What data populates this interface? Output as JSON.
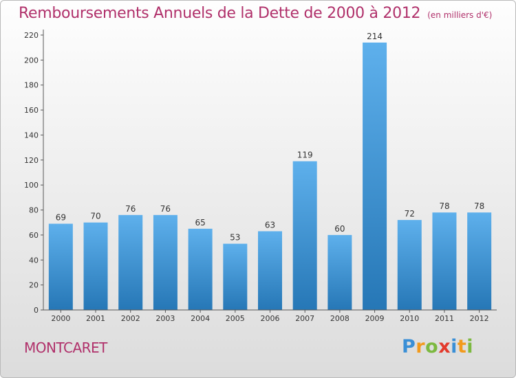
{
  "header": {
    "title": "Remboursements Annuels de la Dette de 2000 à 2012",
    "unit": "(en milliers d'€)"
  },
  "footer": {
    "commune": "MONTCARET",
    "logo_letters": [
      "P",
      "r",
      "o",
      "x",
      "i",
      "t",
      "i"
    ]
  },
  "colors": {
    "title": "#b0306a",
    "bar_top": "#5eb0ec",
    "bar_bottom": "#2677b6",
    "logo": [
      "#3a8fd6",
      "#f29a1c",
      "#7cb940",
      "#e33a2c",
      "#3a8fd6",
      "#f29a1c",
      "#7cb940"
    ]
  },
  "chart_data": {
    "type": "bar",
    "categories": [
      "2000",
      "2001",
      "2002",
      "2003",
      "2004",
      "2005",
      "2006",
      "2007",
      "2008",
      "2009",
      "2010",
      "2011",
      "2012"
    ],
    "values": [
      69,
      70,
      76,
      76,
      65,
      53,
      63,
      119,
      60,
      214,
      72,
      78,
      78
    ],
    "ylim": [
      0,
      220
    ],
    "yticks": [
      0,
      20,
      40,
      60,
      80,
      100,
      120,
      140,
      160,
      180,
      200,
      220
    ],
    "grid": false,
    "data_labels": true
  }
}
